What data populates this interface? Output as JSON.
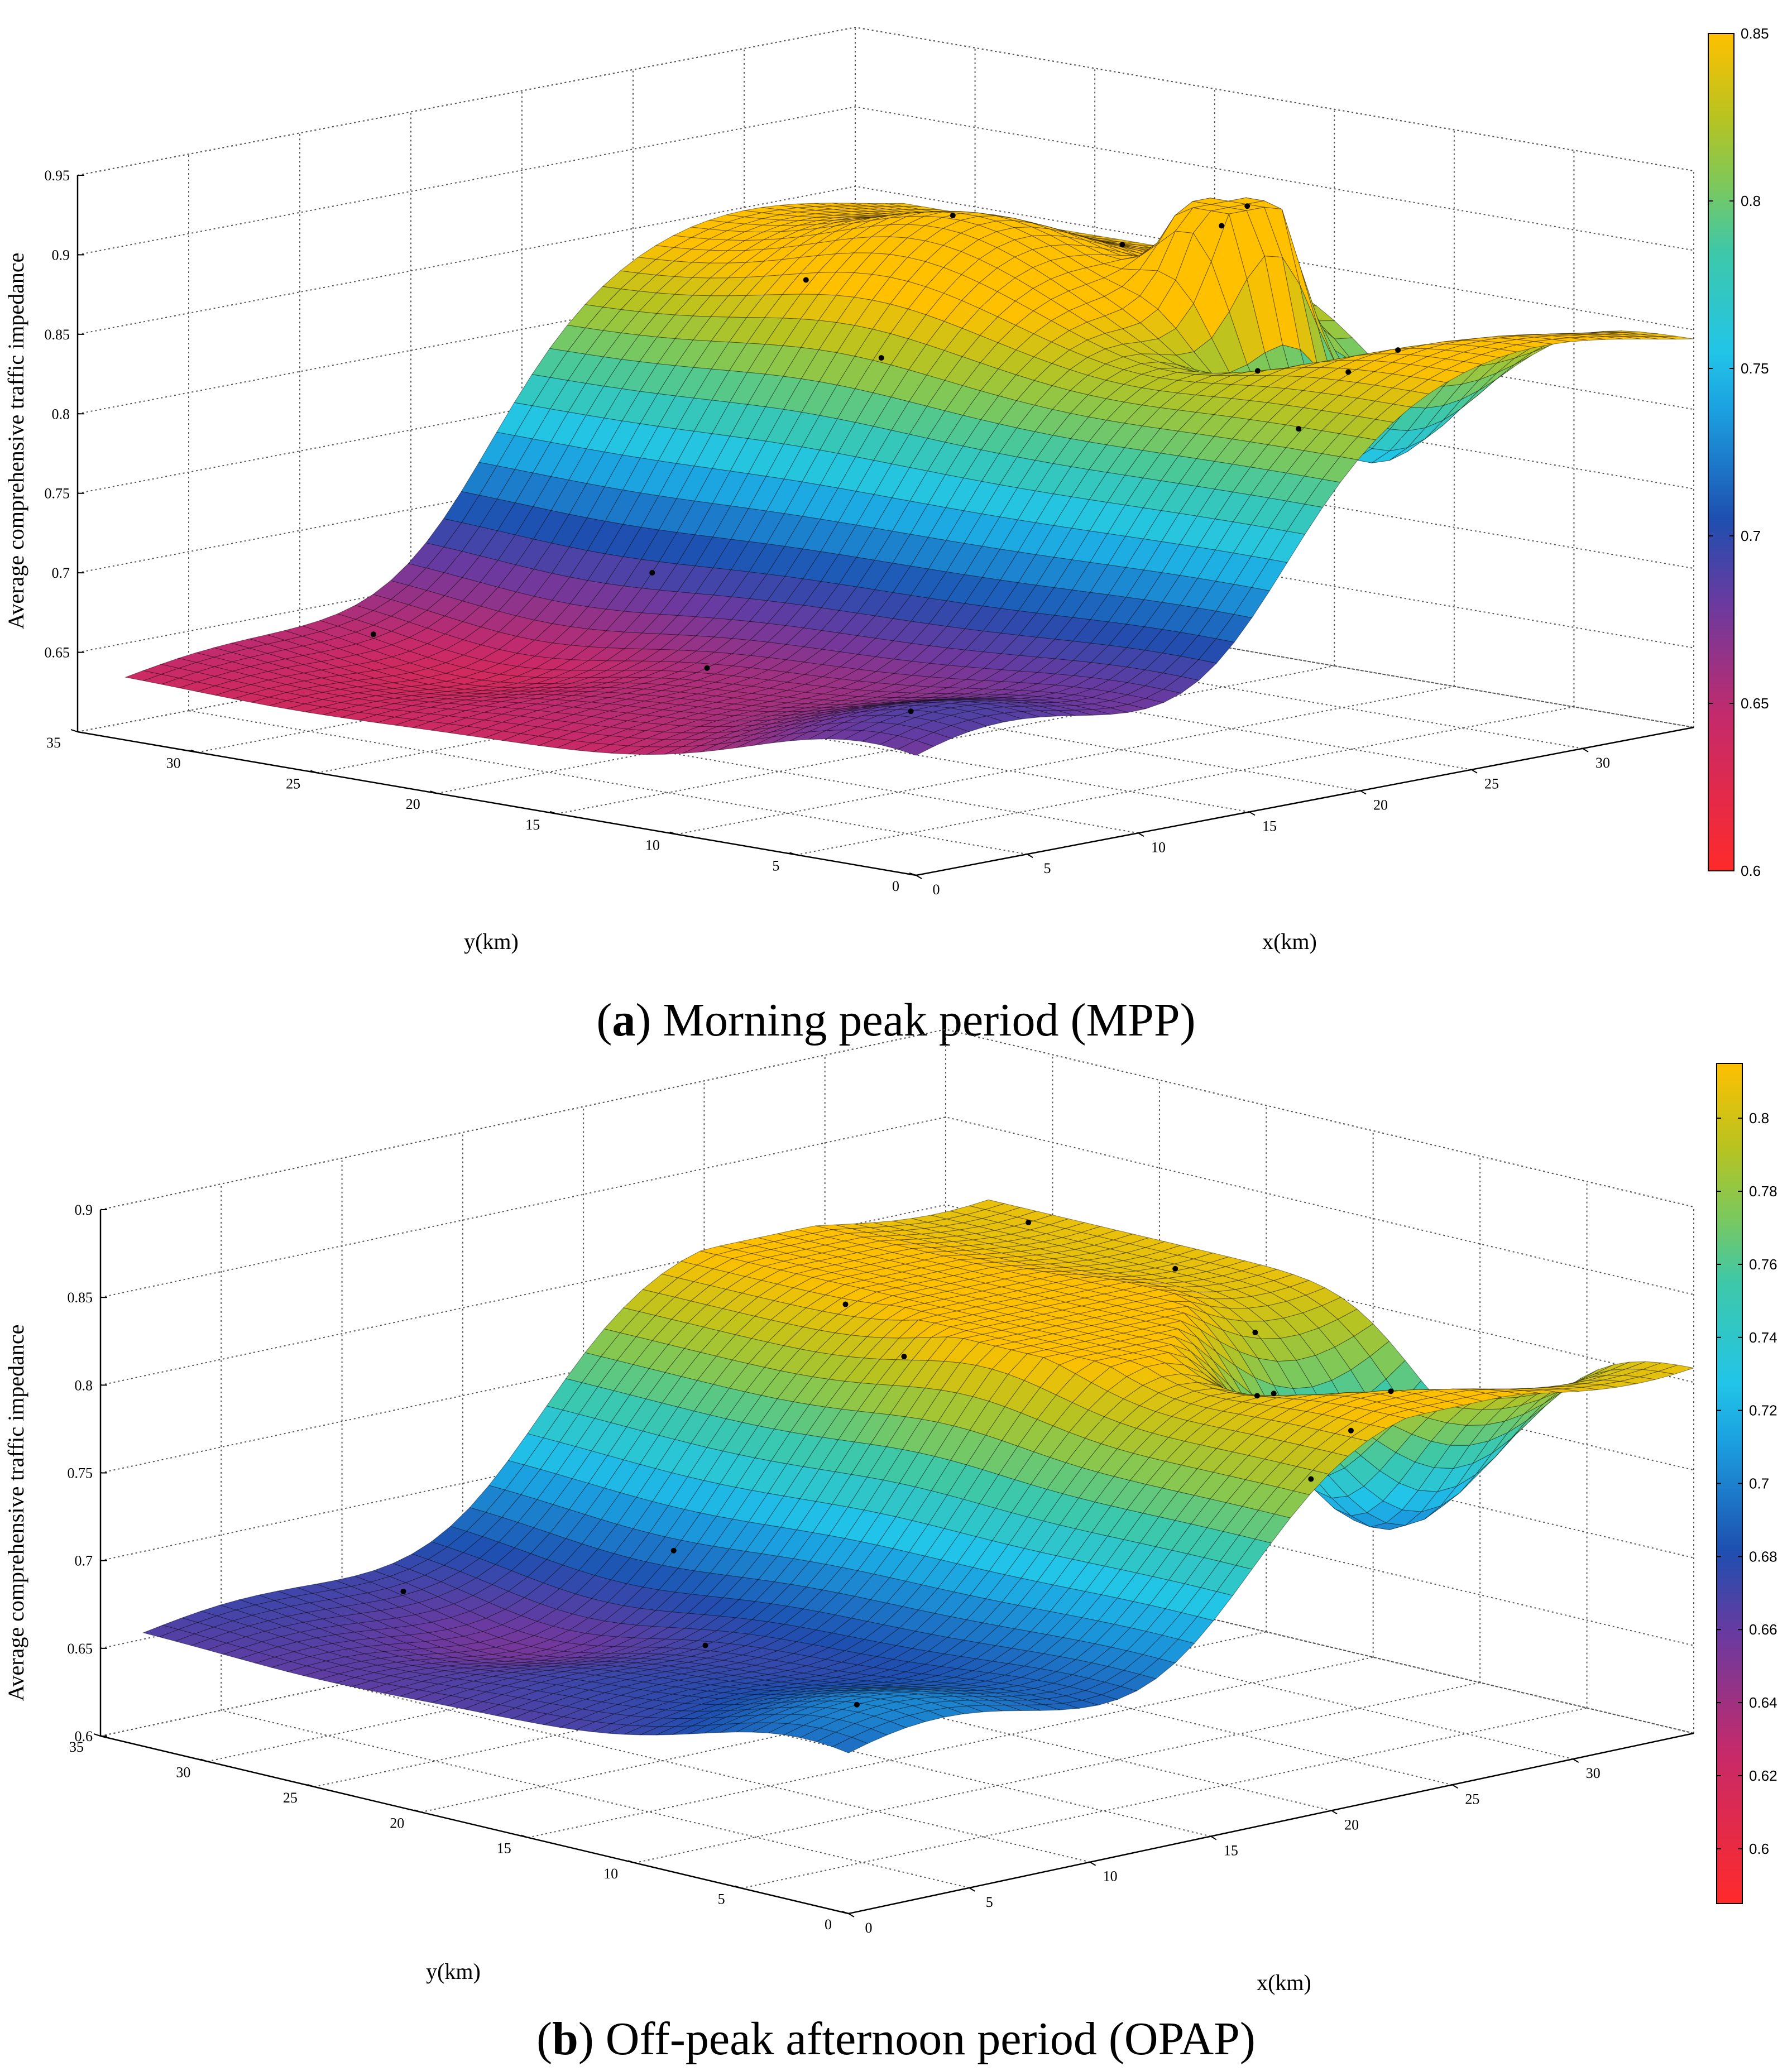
{
  "chart_data": [
    {
      "type": "surface3d",
      "panel_label": "a",
      "caption": "Morning peak period (MPP)",
      "zlabel": "Average comprehensive traffic impedance",
      "xlabel": "x(km)",
      "ylabel": "y(km)",
      "zlim": [
        0.6,
        0.95
      ],
      "z_ticks": [
        "0.65",
        "0.7",
        "0.75",
        "0.8",
        "0.85",
        "0.9",
        "0.95"
      ],
      "x_ticks": [
        "0",
        "5",
        "10",
        "15",
        "20",
        "25",
        "30"
      ],
      "y_ticks": [
        "0",
        "5",
        "10",
        "15",
        "20",
        "25",
        "30",
        "35"
      ],
      "colorbar": {
        "range": [
          0.6,
          0.85
        ],
        "ticks": [
          "0.6",
          "0.65",
          "0.7",
          "0.75",
          "0.8",
          "0.85"
        ]
      },
      "surface_z_range": [
        0.62,
        0.905
      ],
      "sample_points_visible": 14
    },
    {
      "type": "surface3d",
      "panel_label": "b",
      "caption": "Off-peak afternoon period (OPAP)",
      "zlabel": "Average comprehensive traffic impedance",
      "xlabel": "x(km)",
      "ylabel": "y(km)",
      "zlim": [
        0.6,
        0.9
      ],
      "z_ticks": [
        "0.6",
        "0.65",
        "0.7",
        "0.75",
        "0.8",
        "0.85",
        "0.9"
      ],
      "x_ticks": [
        "0",
        "5",
        "10",
        "15",
        "20",
        "25",
        "30"
      ],
      "y_ticks": [
        "0",
        "5",
        "10",
        "15",
        "20",
        "25",
        "30",
        "35"
      ],
      "colorbar": {
        "range": [
          0.585,
          0.815
        ],
        "ticks": [
          "0.6",
          "0.62",
          "0.64",
          "0.66",
          "0.68",
          "0.7",
          "0.72",
          "0.74",
          "0.76",
          "0.78",
          "0.8"
        ]
      },
      "surface_z_range": [
        0.6,
        0.815
      ],
      "sample_points_visible": 14
    }
  ]
}
